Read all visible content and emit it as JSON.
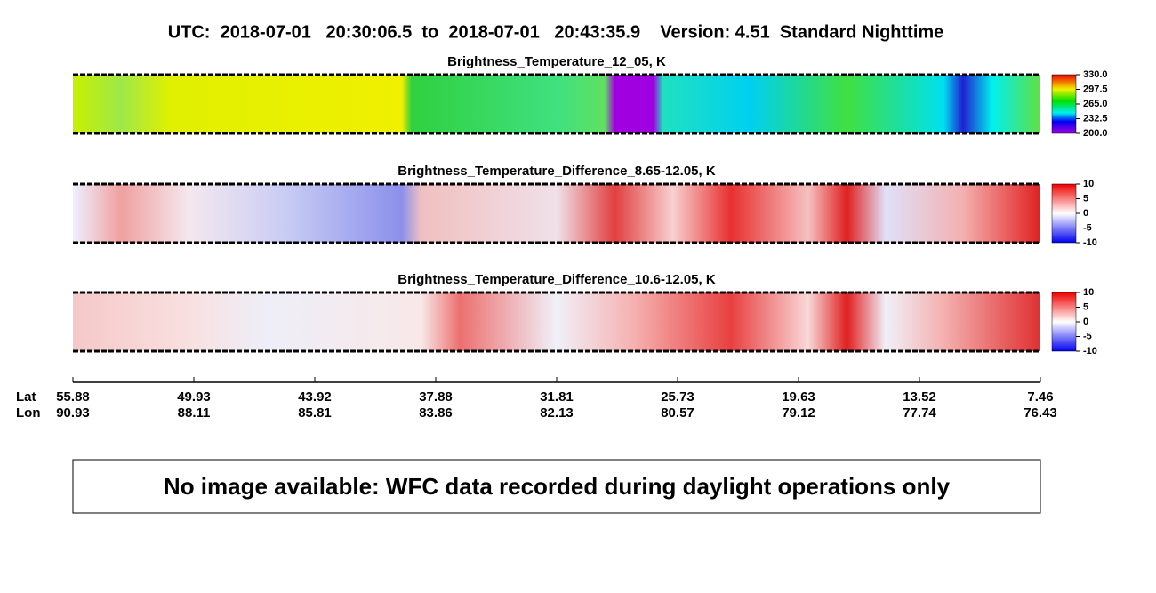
{
  "header": {
    "title": "UTC:  2018-07-01   20:30:06.5  to  2018-07-01   20:43:35.9    Version: 4.51  Standard Nighttime"
  },
  "panels": [
    {
      "title": "Brightness_Temperature_12_05, K",
      "colorbar": {
        "range": [
          200,
          330
        ],
        "ticks": [
          {
            "value": 330,
            "label": "330.0"
          },
          {
            "value": 297.5,
            "label": "297.5"
          },
          {
            "value": 265,
            "label": "265.0"
          },
          {
            "value": 232.5,
            "label": "232.5"
          },
          {
            "value": 200,
            "label": "200.0"
          }
        ]
      }
    },
    {
      "title": "Brightness_Temperature_Difference_8.65-12.05, K",
      "colorbar": {
        "range": [
          -10,
          10
        ],
        "ticks": [
          10,
          5,
          0,
          -5,
          -10
        ]
      }
    },
    {
      "title": "Brightness_Temperature_Difference_10.6-12.05, K",
      "colorbar": {
        "range": [
          -10,
          10
        ],
        "ticks": [
          10,
          5,
          0,
          -5,
          -10
        ]
      }
    }
  ],
  "axis": {
    "lat_label": "Lat",
    "lon_label": "Lon",
    "lat": [
      55.88,
      49.93,
      43.92,
      37.88,
      31.81,
      25.73,
      19.63,
      13.52,
      7.46
    ],
    "lon": [
      90.93,
      88.11,
      85.81,
      83.86,
      82.13,
      80.57,
      79.12,
      77.74,
      76.43
    ]
  },
  "message": "No image available: WFC data recorded during daylight operations only"
}
